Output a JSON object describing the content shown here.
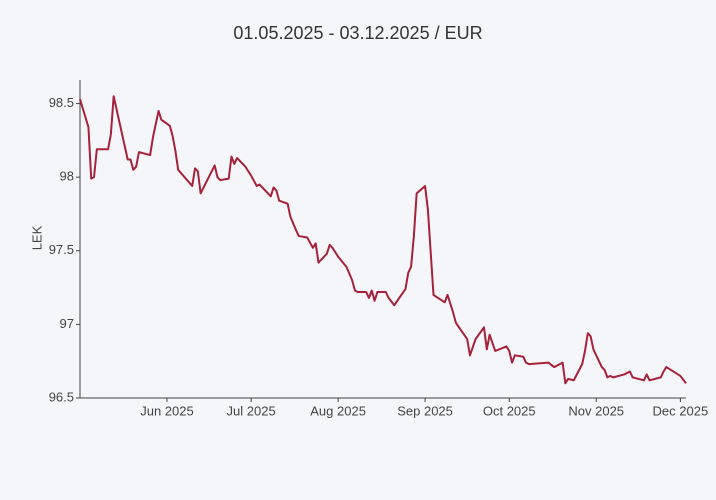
{
  "chart_data": {
    "type": "line",
    "title": "01.05.2025 - 03.12.2025 / EUR",
    "y_label": "LEK",
    "x": [
      "2025-05-01",
      "2025-05-04",
      "2025-05-05",
      "2025-05-06",
      "2025-05-07",
      "2025-05-11",
      "2025-05-12",
      "2025-05-13",
      "2025-05-18",
      "2025-05-19",
      "2025-05-20",
      "2025-05-21",
      "2025-05-22",
      "2025-05-26",
      "2025-05-27",
      "2025-05-29",
      "2025-05-30",
      "2025-06-02",
      "2025-06-03",
      "2025-06-04",
      "2025-06-05",
      "2025-06-10",
      "2025-06-11",
      "2025-06-12",
      "2025-06-13",
      "2025-06-18",
      "2025-06-19",
      "2025-06-20",
      "2025-06-23",
      "2025-06-24",
      "2025-06-25",
      "2025-06-26",
      "2025-06-29",
      "2025-07-01",
      "2025-07-03",
      "2025-07-04",
      "2025-07-08",
      "2025-07-09",
      "2025-07-10",
      "2025-07-11",
      "2025-07-14",
      "2025-07-15",
      "2025-07-17",
      "2025-07-18",
      "2025-07-21",
      "2025-07-23",
      "2025-07-24",
      "2025-07-25",
      "2025-07-28",
      "2025-07-29",
      "2025-07-30",
      "2025-08-01",
      "2025-08-04",
      "2025-08-06",
      "2025-08-07",
      "2025-08-08",
      "2025-08-11",
      "2025-08-12",
      "2025-08-13",
      "2025-08-14",
      "2025-08-15",
      "2025-08-18",
      "2025-08-19",
      "2025-08-21",
      "2025-08-25",
      "2025-08-26",
      "2025-08-27",
      "2025-08-28",
      "2025-08-29",
      "2025-09-01",
      "2025-09-02",
      "2025-09-04",
      "2025-09-08",
      "2025-09-09",
      "2025-09-11",
      "2025-09-12",
      "2025-09-16",
      "2025-09-17",
      "2025-09-19",
      "2025-09-22",
      "2025-09-23",
      "2025-09-24",
      "2025-09-26",
      "2025-09-30",
      "2025-10-01",
      "2025-10-02",
      "2025-10-03",
      "2025-10-06",
      "2025-10-07",
      "2025-10-08",
      "2025-10-15",
      "2025-10-17",
      "2025-10-20",
      "2025-10-21",
      "2025-10-22",
      "2025-10-24",
      "2025-10-27",
      "2025-10-28",
      "2025-10-29",
      "2025-10-30",
      "2025-10-31",
      "2025-11-03",
      "2025-11-04",
      "2025-11-05",
      "2025-11-06",
      "2025-11-07",
      "2025-11-11",
      "2025-11-13",
      "2025-11-14",
      "2025-11-18",
      "2025-11-19",
      "2025-11-20",
      "2025-11-24",
      "2025-11-25",
      "2025-11-26",
      "2025-12-01",
      "2025-12-03"
    ],
    "values": [
      98.53,
      98.34,
      97.99,
      98.0,
      98.19,
      98.19,
      98.29,
      98.55,
      98.12,
      98.12,
      98.05,
      98.07,
      98.17,
      98.15,
      98.27,
      98.45,
      98.39,
      98.35,
      98.28,
      98.18,
      98.05,
      97.94,
      98.06,
      98.04,
      97.89,
      98.08,
      98.0,
      97.98,
      97.99,
      98.14,
      98.09,
      98.13,
      98.07,
      98.01,
      97.94,
      97.95,
      97.87,
      97.93,
      97.91,
      97.84,
      97.82,
      97.73,
      97.64,
      97.6,
      97.59,
      97.52,
      97.55,
      97.42,
      97.48,
      97.54,
      97.52,
      97.46,
      97.39,
      97.3,
      97.23,
      97.22,
      97.22,
      97.18,
      97.23,
      97.16,
      97.22,
      97.22,
      97.18,
      97.13,
      97.24,
      97.35,
      97.39,
      97.6,
      97.89,
      97.94,
      97.78,
      97.2,
      97.15,
      97.2,
      97.08,
      97.01,
      96.9,
      96.79,
      96.9,
      96.98,
      96.83,
      96.93,
      96.82,
      96.85,
      96.82,
      96.74,
      96.79,
      96.78,
      96.74,
      96.73,
      96.74,
      96.71,
      96.74,
      96.6,
      96.63,
      96.62,
      96.73,
      96.82,
      96.94,
      96.92,
      96.83,
      96.71,
      96.69,
      96.64,
      96.65,
      96.64,
      96.66,
      96.68,
      96.64,
      96.62,
      96.66,
      96.62,
      96.64,
      96.68,
      96.71,
      96.65,
      96.6
    ],
    "color": "#a6213a",
    "xlim": [
      "2025-05-01",
      "2025-12-03"
    ],
    "xticks": [
      {
        "value": "2025-06-01",
        "label": "Jun 2025"
      },
      {
        "value": "2025-07-01",
        "label": "Jul 2025"
      },
      {
        "value": "2025-08-01",
        "label": "Aug 2025"
      },
      {
        "value": "2025-09-01",
        "label": "Sep 2025"
      },
      {
        "value": "2025-10-01",
        "label": "Oct 2025"
      },
      {
        "value": "2025-11-01",
        "label": "Nov 2025"
      },
      {
        "value": "2025-12-01",
        "label": "Dec 2025"
      }
    ],
    "ylim": [
      96.5,
      98.66
    ],
    "yticks": [
      96.5,
      97,
      97.5,
      98,
      98.5
    ]
  }
}
